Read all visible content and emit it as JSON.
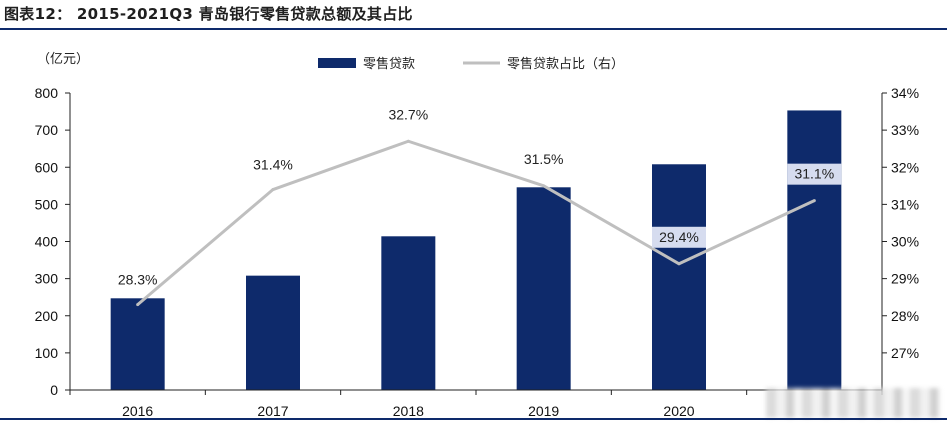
{
  "figure": {
    "title": "图表12：  2015-2021Q3 青岛银行零售贷款总额及其占比",
    "unit": "（亿元）"
  },
  "colors": {
    "bar": "#0e2a6b",
    "line": "#bfbfbf",
    "label_bg": "#d6dcef"
  },
  "chart_data": {
    "type": "bar",
    "categories": [
      "2016",
      "2017",
      "2018",
      "2019",
      "2020",
      ""
    ],
    "series": [
      {
        "name": "零售贷款",
        "type": "bar",
        "axis": "left",
        "values": [
          247,
          308,
          414,
          546,
          608,
          753
        ]
      },
      {
        "name": "零售贷款占比（右）",
        "type": "line",
        "axis": "right",
        "values": [
          28.3,
          31.4,
          32.7,
          31.5,
          29.4,
          31.1
        ],
        "labels": [
          "28.3%",
          "31.4%",
          "32.7%",
          "31.5%",
          "29.4%",
          "31.1%"
        ]
      }
    ],
    "ylim": [
      0,
      800
    ],
    "yticks": [
      "0",
      "100",
      "200",
      "300",
      "400",
      "500",
      "600",
      "700",
      "800"
    ],
    "y2lim": [
      26,
      34
    ],
    "y2ticks": [
      "27%",
      "28%",
      "29%",
      "30%",
      "31%",
      "32%",
      "33%",
      "34%"
    ],
    "legend_position": "top-center",
    "grid": false
  }
}
